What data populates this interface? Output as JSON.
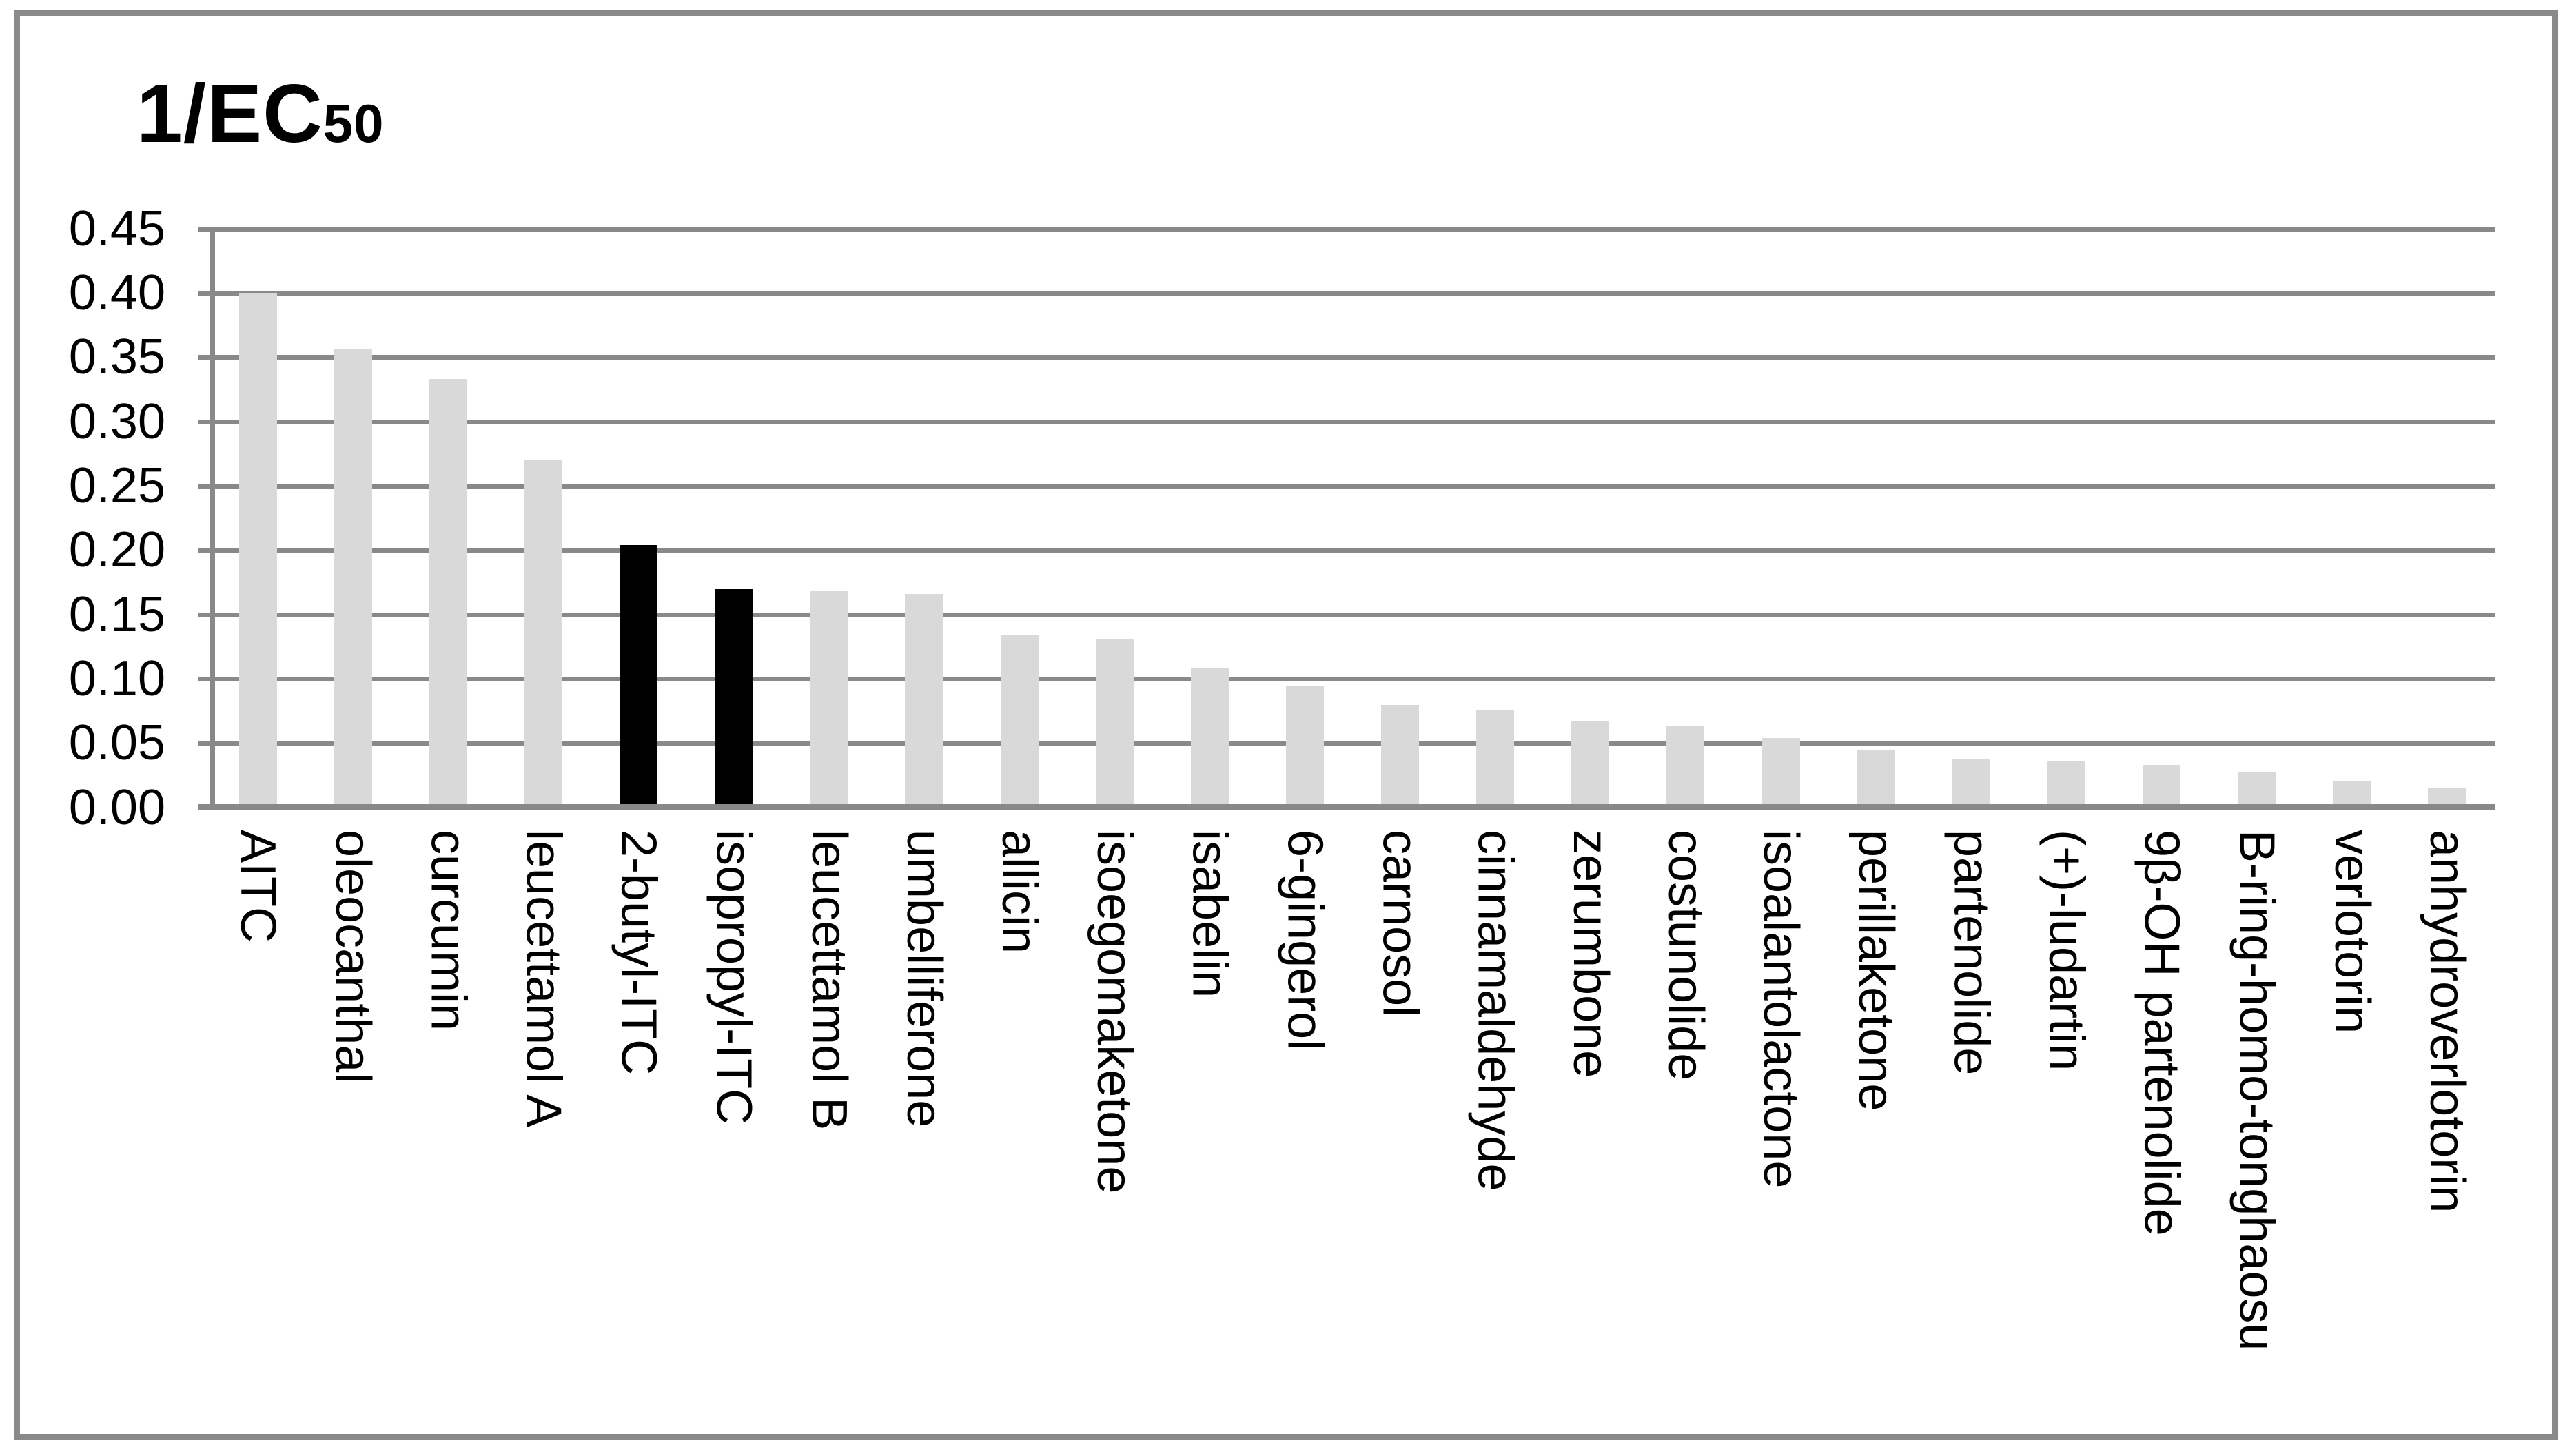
{
  "figure": {
    "title_main": "1/EC",
    "title_sub": "50"
  },
  "chart_data": {
    "type": "bar",
    "title": "1/EC50",
    "xlabel": "",
    "ylabel": "",
    "legend": "none",
    "grid": "horizontal",
    "ylim": [
      0,
      0.45
    ],
    "ytick_step": 0.05,
    "ytick_labels": [
      "0.45",
      "0.40",
      "0.35",
      "0.30",
      "0.25",
      "0.20",
      "0.15",
      "0.10",
      "0.05",
      "0.00"
    ],
    "categories": [
      "AITC",
      "oleocanthal",
      "curcumin",
      "leucettamol A",
      "2-butyl-ITC",
      "isopropyl-ITC",
      "leucettamol B",
      "umbelliferone",
      "allicin",
      "isoegomaketone",
      "isabelin",
      "6-gingerol",
      "carnosol",
      "cinnamaldehyde",
      "zerumbone",
      "costunolide",
      "isoalantolactone",
      "perillaketone",
      "partenolide",
      "(+)-ludartin",
      "9β-OH partenolide",
      "B-ring-homo-tonghaosu",
      "verlotorin",
      "anhydroverlotorin"
    ],
    "values": [
      0.4,
      0.357,
      0.333,
      0.27,
      0.204,
      0.17,
      0.169,
      0.166,
      0.134,
      0.131,
      0.108,
      0.095,
      0.08,
      0.076,
      0.067,
      0.063,
      0.054,
      0.045,
      0.038,
      0.036,
      0.033,
      0.028,
      0.021,
      0.015
    ],
    "highlighted_categories": [
      "2-butyl-ITC",
      "isopropyl-ITC"
    ],
    "default_bar_color": "#d9d9d9",
    "highlight_color": "#000000",
    "gridline_color": "#898989",
    "border_color": "#8a8a8a"
  }
}
